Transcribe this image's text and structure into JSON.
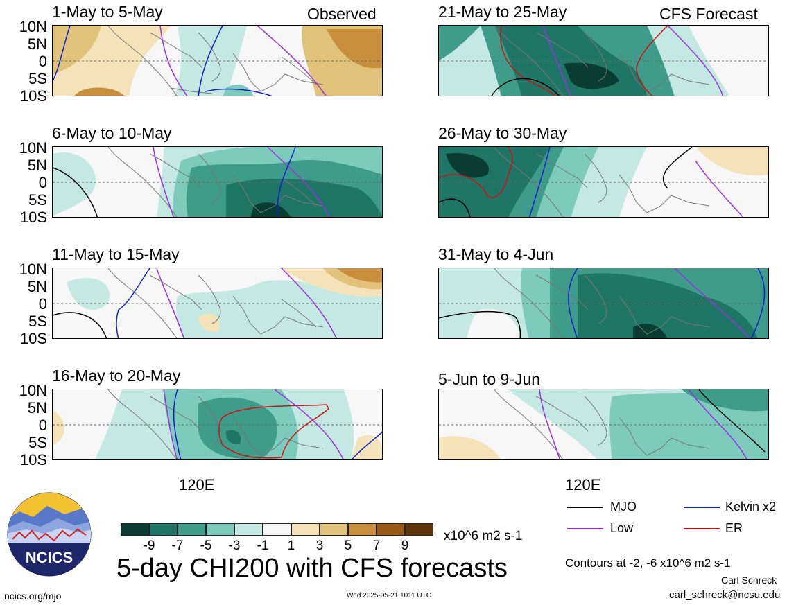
{
  "titles": {
    "observed": "Observed",
    "forecast": "CFS Forecast",
    "main": "5-day CHI200 with CFS forecasts"
  },
  "panels_left": [
    {
      "period": "1-May to 5-May"
    },
    {
      "period": "6-May to 10-May"
    },
    {
      "period": "11-May to 15-May"
    },
    {
      "period": "16-May to 20-May"
    }
  ],
  "panels_right": [
    {
      "period": "21-May to 25-May"
    },
    {
      "period": "26-May to 30-May"
    },
    {
      "period": "31-May to 4-Jun"
    },
    {
      "period": "5-Jun to 9-Jun"
    }
  ],
  "axis": {
    "lat_labels": [
      "10N",
      "5N",
      "0",
      "5S",
      "10S"
    ],
    "lon_label": "120E"
  },
  "colorbar": {
    "ticks": [
      "-9",
      "-7",
      "-5",
      "-3",
      "-1",
      "1",
      "3",
      "5",
      "7",
      "9"
    ],
    "units": "x10^6 m2 s-1",
    "colors": [
      "#0a3d32",
      "#1f7566",
      "#3f9c8b",
      "#7ccbbd",
      "#c4e9e2",
      "#f7f7f7",
      "#f4e3b8",
      "#e0c27a",
      "#c98e3c",
      "#9a5a16",
      "#5c3408"
    ]
  },
  "legend": {
    "mjo": "MJO",
    "kelvin": "Kelvin x2",
    "low": "Low",
    "er": "ER",
    "colors": {
      "mjo": "#000000",
      "kelvin": "#1020d0",
      "low": "#9b30e0",
      "er": "#d01010"
    }
  },
  "footer": {
    "contours": "Contours at -2, -6 x10^6 m2 s-1",
    "author": "Carl Schreck",
    "email": "carl_schreck@ncsu.edu",
    "site": "ncics.org/mjo",
    "timestamp": "Wed 2025-05-21 1011 UTC",
    "logo_text": "NCICS"
  }
}
